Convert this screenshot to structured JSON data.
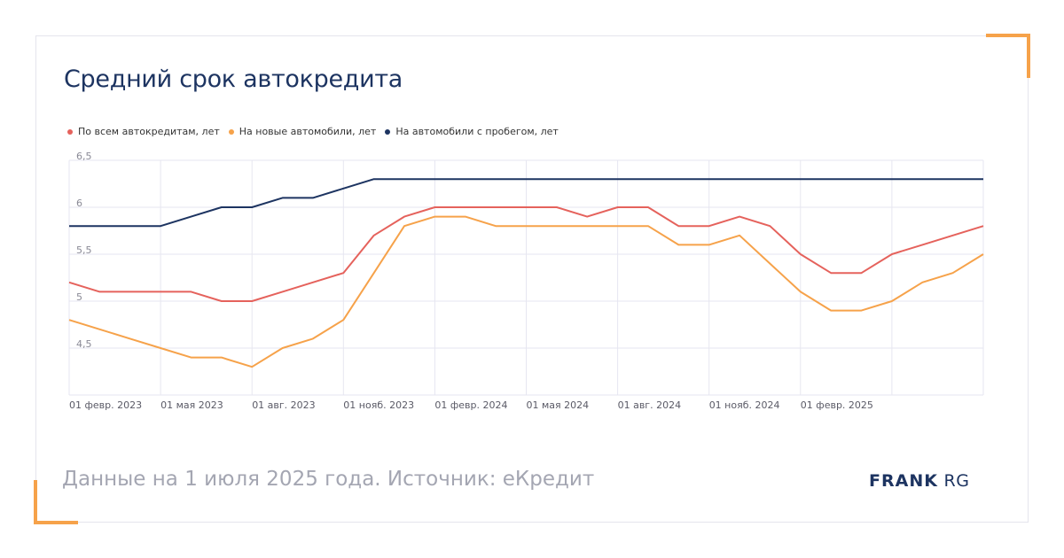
{
  "title": "Средний срок автокредита",
  "footer": "Данные на 1 июля 2025 года. Источник: еКредит",
  "logo": {
    "bold": "FRANK",
    "light": "RG"
  },
  "colors": {
    "accent": "#f6a24a",
    "title": "#1d3461"
  },
  "chart_data": {
    "type": "line",
    "x_tick_labels": [
      "01 февр. 2023",
      "01 мая 2023",
      "01 авг. 2023",
      "01 нояб. 2023",
      "01 февр. 2024",
      "01 мая 2024",
      "01 авг. 2024",
      "01 нояб. 2024",
      "01 февр. 2025"
    ],
    "y_tick_labels": [
      "6,5",
      "6",
      "5,5",
      "5",
      "4,5"
    ],
    "ylim": [
      4,
      6.5
    ],
    "grid": true,
    "legend_position": "top-left",
    "series": [
      {
        "name": "По всем автокредитам, лет",
        "color": "#e5625c",
        "values": [
          5.2,
          5.1,
          5.1,
          5.1,
          5.1,
          5.0,
          5.0,
          5.1,
          5.2,
          5.3,
          5.7,
          5.9,
          6.0,
          6.0,
          6.0,
          6.0,
          6.0,
          5.9,
          6.0,
          6.0,
          5.8,
          5.8,
          5.9,
          5.8,
          5.5,
          5.3,
          5.3,
          5.5,
          5.6,
          5.7,
          5.8
        ]
      },
      {
        "name": "На новые автомобили, лет",
        "color": "#f6a24a",
        "values": [
          4.8,
          4.7,
          4.6,
          4.5,
          4.4,
          4.4,
          4.3,
          4.5,
          4.6,
          4.8,
          5.3,
          5.8,
          5.9,
          5.9,
          5.8,
          5.8,
          5.8,
          5.8,
          5.8,
          5.8,
          5.6,
          5.6,
          5.7,
          5.4,
          5.1,
          4.9,
          4.9,
          5.0,
          5.2,
          5.3,
          5.5
        ]
      },
      {
        "name": "На автомобили с пробегом, лет",
        "color": "#1d3461",
        "values": [
          5.8,
          5.8,
          5.8,
          5.8,
          5.9,
          6.0,
          6.0,
          6.1,
          6.1,
          6.2,
          6.3,
          6.3,
          6.3,
          6.3,
          6.3,
          6.3,
          6.3,
          6.3,
          6.3,
          6.3,
          6.3,
          6.3,
          6.3,
          6.3,
          6.3,
          6.3,
          6.3,
          6.3,
          6.3,
          6.3,
          6.3
        ]
      }
    ]
  }
}
